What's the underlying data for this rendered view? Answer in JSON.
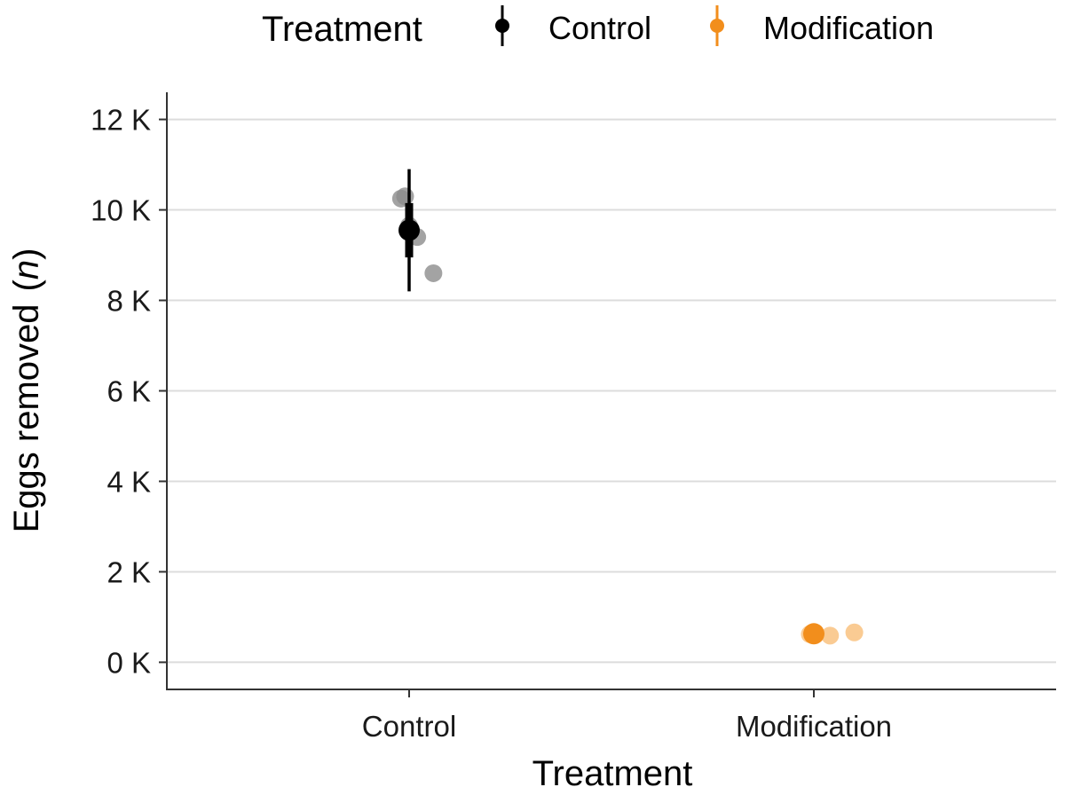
{
  "chart_data": {
    "type": "scatter",
    "title": "",
    "xlabel": "Treatment",
    "ylabel_main": "Eggs removed",
    "ylabel_italic": "n",
    "ylabel_open": "(",
    "ylabel_close": ")",
    "categories": [
      "Control",
      "Modification"
    ],
    "ylim": [
      -600,
      12600
    ],
    "yticks": [
      {
        "value": 0,
        "label": "0 K"
      },
      {
        "value": 2000,
        "label": "2 K"
      },
      {
        "value": 4000,
        "label": "4 K"
      },
      {
        "value": 6000,
        "label": "6 K"
      },
      {
        "value": 8000,
        "label": "8 K"
      },
      {
        "value": 10000,
        "label": "10 K"
      },
      {
        "value": 12000,
        "label": "12 K"
      }
    ],
    "grid": "horizontal",
    "legend": {
      "title": "Treatment",
      "placement": "top",
      "entries": [
        "Control",
        "Modification"
      ]
    },
    "series": [
      {
        "name": "Control",
        "color": "#000000",
        "point_color": "#8c8c8c",
        "points": [
          {
            "offset": -0.02,
            "value": 10250
          },
          {
            "offset": -0.01,
            "value": 10300
          },
          {
            "offset": 0.0,
            "value": 9650
          },
          {
            "offset": 0.02,
            "value": 9400
          },
          {
            "offset": 0.06,
            "value": 8600
          }
        ],
        "mean": 9550,
        "inner_interval": [
          8950,
          10150
        ],
        "outer_interval": [
          8200,
          10900
        ]
      },
      {
        "name": "Modification",
        "color": "#f28e1c",
        "point_color": "#f5a03a",
        "points": [
          {
            "offset": -0.01,
            "value": 620
          },
          {
            "offset": 0.0,
            "value": 640
          },
          {
            "offset": 0.04,
            "value": 590
          },
          {
            "offset": 0.1,
            "value": 660
          }
        ],
        "mean": 630,
        "inner_interval": [
          600,
          660
        ],
        "outer_interval": [
          570,
          690
        ]
      }
    ]
  }
}
